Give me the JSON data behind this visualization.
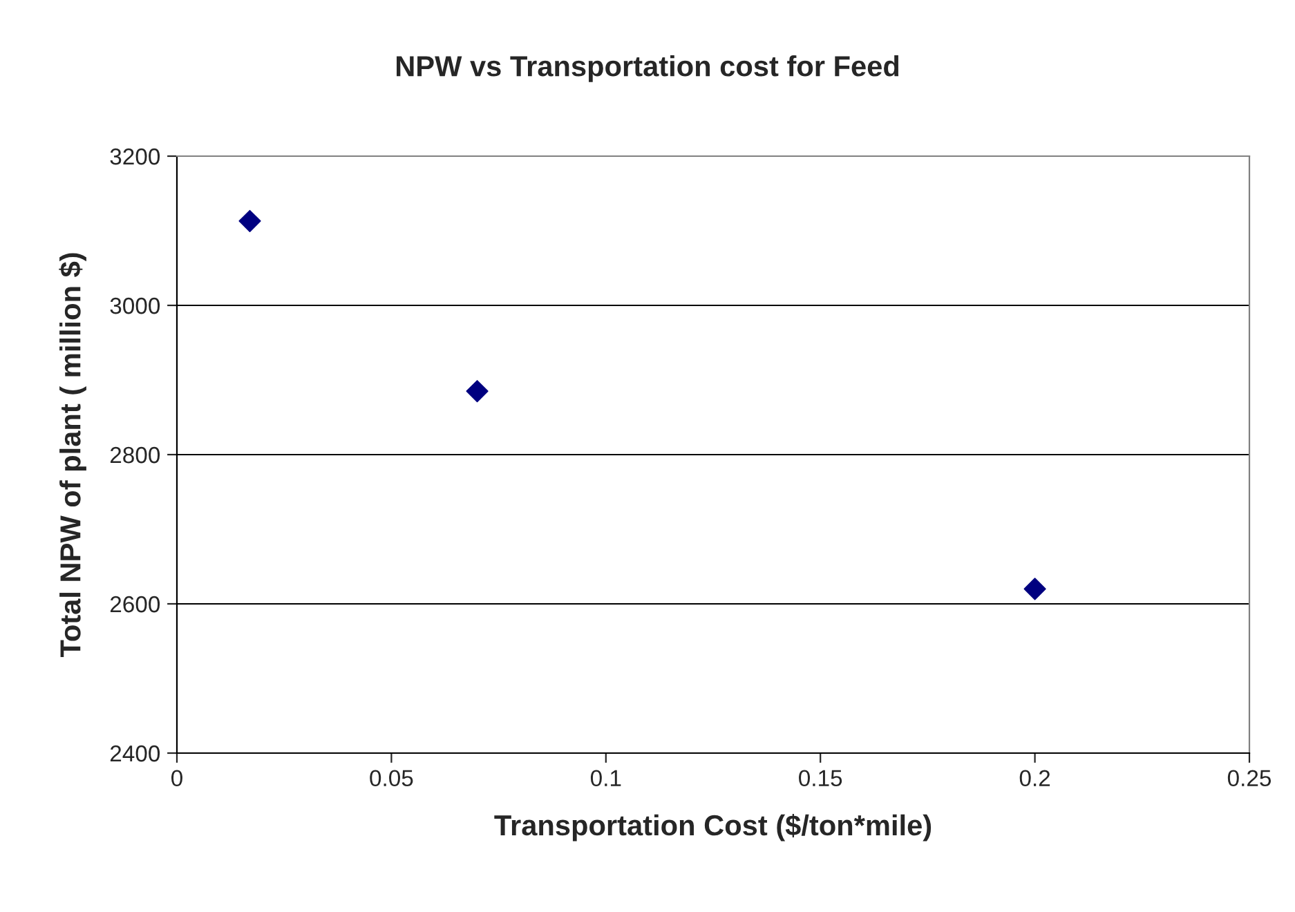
{
  "chart_data": {
    "type": "scatter",
    "title": "NPW vs Transportation cost for Feed",
    "xlabel": "Transportation Cost ($/ton*mile)",
    "ylabel": "Total NPW of plant ( million $)",
    "x": [
      0.017,
      0.07,
      0.2
    ],
    "series": [
      {
        "color": "#000080",
        "values": [
          3113,
          2885,
          2620
        ]
      }
    ],
    "xlim": [
      0,
      0.25
    ],
    "xticks": [
      0,
      0.05,
      0.1,
      0.15,
      0.2,
      0.25
    ],
    "ylim": [
      2400,
      3200
    ],
    "yticks": [
      2400,
      2600,
      2800,
      3000,
      3200
    ],
    "grid": "y",
    "marker": "diamond"
  }
}
